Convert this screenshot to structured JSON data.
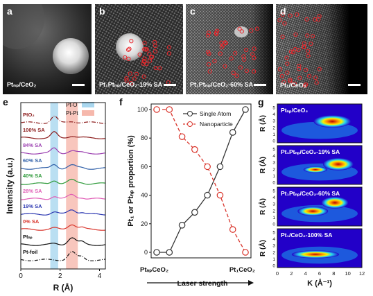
{
  "panels": {
    "a": {
      "letter": "a",
      "caption": "Ptₙₚ/CeO₂"
    },
    "b": {
      "letter": "b",
      "caption": "Pt₁Ptₙₚ/CeO₂-19% SA"
    },
    "c": {
      "letter": "c",
      "caption": "Pt₁Ptₙₚ/CeO₂-60% SA"
    },
    "d": {
      "letter": "d",
      "caption": "Pt₁/CeO₂"
    },
    "e": {
      "letter": "e"
    },
    "f": {
      "letter": "f"
    },
    "g": {
      "letter": "g"
    }
  },
  "colors": {
    "pt_o_band": "#a9d7ef",
    "pt_pt_band": "#f6b8ac",
    "single_atom": "#333333",
    "nanoparticle": "#d9342b"
  },
  "chart_data": [
    {
      "panel": "e",
      "type": "line",
      "xlabel": "R (Å)",
      "ylabel": "Intensity (a.u.)",
      "xlim": [
        0,
        4.3
      ],
      "xticks": [
        0,
        2,
        4
      ],
      "bands": [
        {
          "label": "Pt-O",
          "range": [
            1.5,
            1.9
          ],
          "color": "#a9d7ef"
        },
        {
          "label": "Pt-Pt",
          "range": [
            2.3,
            2.9
          ],
          "color": "#f6b8ac"
        }
      ],
      "series": [
        {
          "name": "PtO₂",
          "color": "#8b1a1a",
          "dash": "6,2,1,2"
        },
        {
          "name": "100% SA",
          "color": "#8b1a1a"
        },
        {
          "name": "84% SA",
          "color": "#9b3fb0"
        },
        {
          "name": "60% SA",
          "color": "#2f5fa8"
        },
        {
          "name": "40% SA",
          "color": "#2e9a3a"
        },
        {
          "name": "28% SA",
          "color": "#e05bb5"
        },
        {
          "name": "19% SA",
          "color": "#2a36b0"
        },
        {
          "name": "0% SA",
          "color": "#d9342b"
        },
        {
          "name": "Ptₙₚ",
          "color": "#111111"
        },
        {
          "name": "Pt-foil",
          "color": "#111111",
          "dash": "5,2,1,2"
        }
      ]
    },
    {
      "panel": "f",
      "type": "line",
      "ylabel": "Pt₁ or Ptₙₚ proportion (%)",
      "xlabel": "Laser strength",
      "x_left_label": "PtₙₚCeO₂",
      "x_right_label": "Pt₁CeO₂",
      "ylim": [
        0,
        100
      ],
      "yticks": [
        0,
        20,
        40,
        60,
        80,
        100
      ],
      "x": [
        0,
        1,
        2,
        3,
        4,
        5,
        6,
        7
      ],
      "series": [
        {
          "name": "Single Atom",
          "color": "#333333",
          "values": [
            0,
            0,
            19,
            28,
            40,
            60,
            84,
            100
          ]
        },
        {
          "name": "Nanoparticle",
          "color": "#d9342b",
          "values": [
            100,
            100,
            81,
            72,
            60,
            40,
            16,
            0
          ]
        }
      ]
    },
    {
      "panel": "g",
      "type": "heatmap",
      "xlabel": "K (Å⁻¹)",
      "ylabel": "R (Å)",
      "xlim": [
        0,
        12
      ],
      "xticks": [
        0,
        2,
        4,
        6,
        8,
        10,
        12
      ],
      "ylim": [
        0,
        5
      ],
      "yticks": [
        0,
        1,
        2,
        3,
        4,
        5
      ],
      "maps": [
        {
          "title": "Ptₙₚ/CeO₂"
        },
        {
          "title": "Pt₁Ptₙₚ/CeO₂-19% SA"
        },
        {
          "title": "Pt₁Ptₙₚ/CeO₂-60% SA"
        },
        {
          "title": "Pt₁/CeO₂-100% SA"
        }
      ]
    }
  ]
}
